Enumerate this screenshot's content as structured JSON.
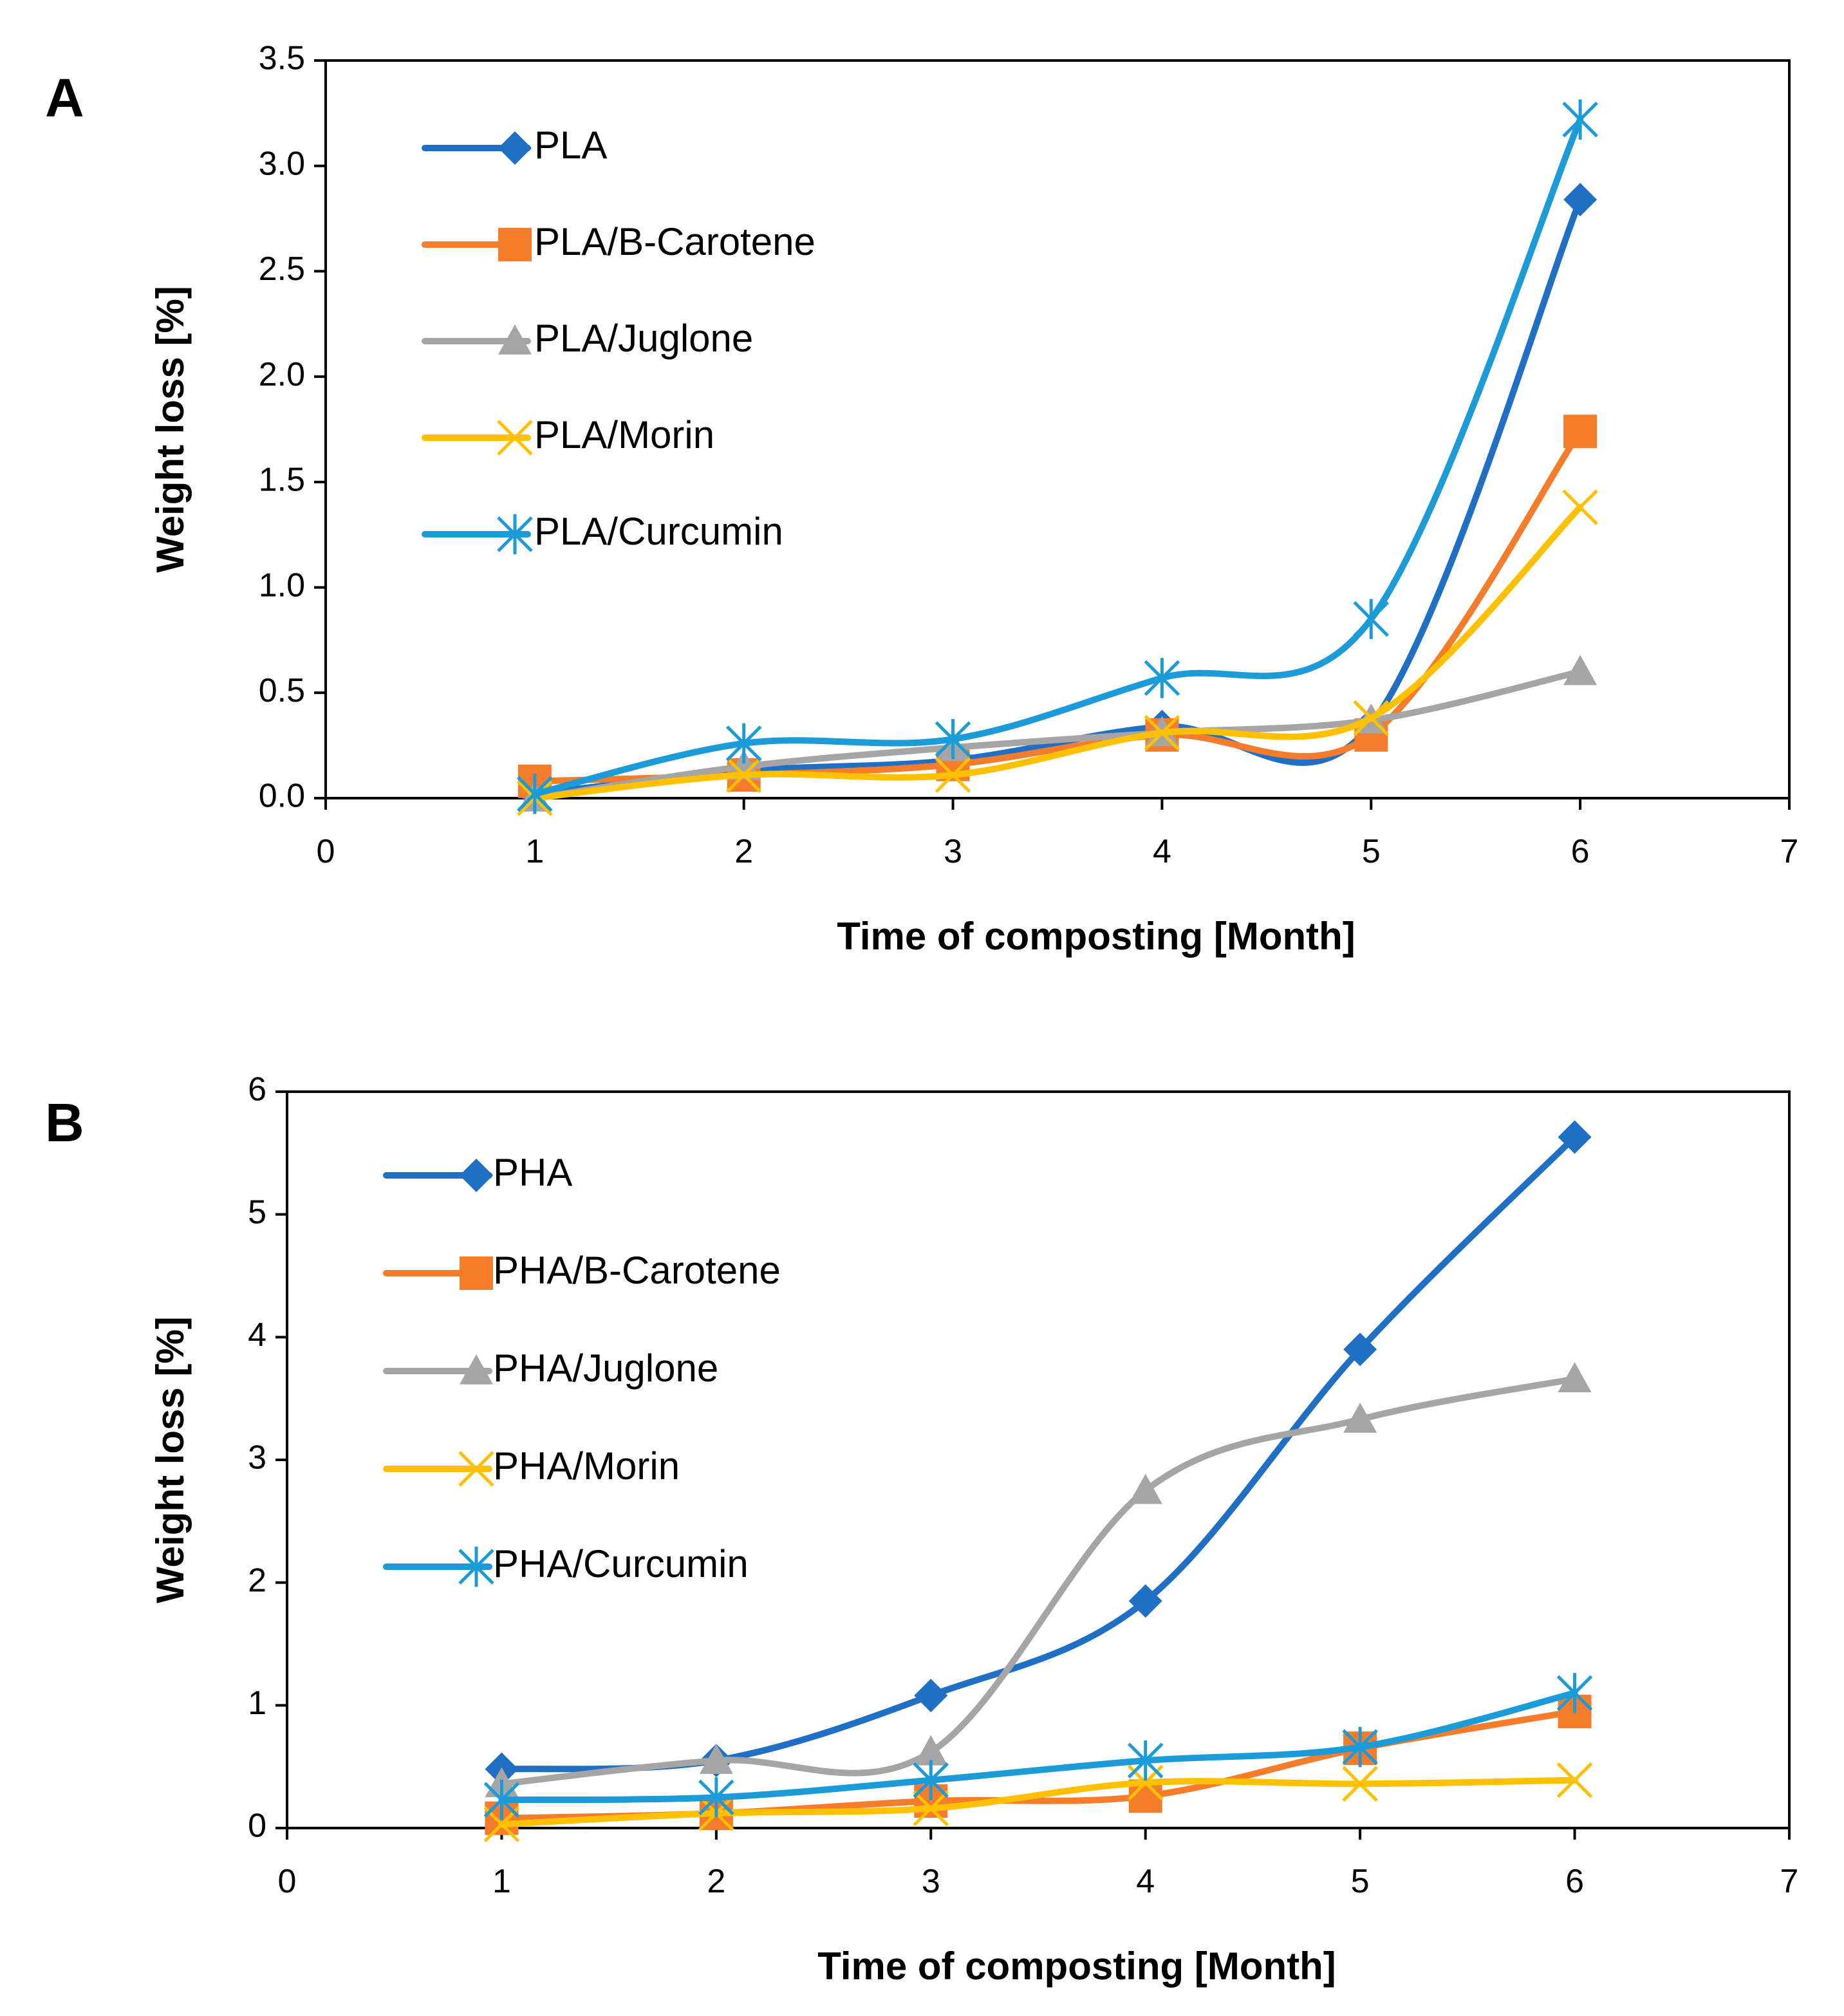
{
  "chart_data": [
    {
      "type": "line",
      "panel_label": "A",
      "xlabel": "Time of composting [Month]",
      "ylabel": "Weight loss [%]",
      "xlim": [
        0,
        7
      ],
      "ylim": [
        0,
        3.5
      ],
      "x_ticks": [
        0,
        1,
        2,
        3,
        4,
        5,
        6,
        7
      ],
      "x_tick_labels": [
        "0",
        "1",
        "2",
        "3",
        "4",
        "5",
        "6",
        "7"
      ],
      "y_ticks": [
        0,
        0.5,
        1.0,
        1.5,
        2.0,
        2.5,
        3.0,
        3.5
      ],
      "y_tick_labels": [
        "0.0",
        "0.5",
        "1.0",
        "1.5",
        "2.0",
        "2.5",
        "3.0",
        "3.5"
      ],
      "grid": false,
      "legend_position": "top-left",
      "x": [
        1,
        2,
        3,
        4,
        5,
        6
      ],
      "series": [
        {
          "name": "PLA",
          "color": "#1F6FC5",
          "marker": "diamond",
          "values": [
            0.02,
            0.13,
            0.18,
            0.34,
            0.35,
            2.84
          ]
        },
        {
          "name": "PLA/B-Carotene",
          "color": "#F47C2A",
          "marker": "square",
          "values": [
            0.08,
            0.11,
            0.16,
            0.3,
            0.3,
            1.74
          ]
        },
        {
          "name": "PLA/Juglone",
          "color": "#A5A5A5",
          "marker": "triangle",
          "values": [
            0.0,
            0.15,
            0.24,
            0.31,
            0.37,
            0.6
          ]
        },
        {
          "name": "PLA/Morin",
          "color": "#FFC000",
          "marker": "x",
          "values": [
            0.0,
            0.11,
            0.11,
            0.31,
            0.38,
            1.38
          ]
        },
        {
          "name": "PLA/Curcumin",
          "color": "#1B9BD7",
          "marker": "asterisk",
          "values": [
            0.02,
            0.26,
            0.28,
            0.57,
            0.85,
            3.22
          ]
        }
      ]
    },
    {
      "type": "line",
      "panel_label": "B",
      "xlabel": "Time of composting [Month]",
      "ylabel": "Weight loss [%]",
      "xlim": [
        0,
        7
      ],
      "ylim": [
        0,
        6
      ],
      "x_ticks": [
        0,
        1,
        2,
        3,
        4,
        5,
        6,
        7
      ],
      "x_tick_labels": [
        "0",
        "1",
        "2",
        "3",
        "4",
        "5",
        "6",
        "7"
      ],
      "y_ticks": [
        0,
        1,
        2,
        3,
        4,
        5,
        6
      ],
      "y_tick_labels": [
        "0",
        "1",
        "2",
        "3",
        "4",
        "5",
        "6"
      ],
      "grid": false,
      "legend_position": "top-left",
      "x": [
        1,
        2,
        3,
        4,
        5,
        6
      ],
      "series": [
        {
          "name": "PHA",
          "color": "#1F6FC5",
          "marker": "diamond",
          "values": [
            0.48,
            0.55,
            1.08,
            1.85,
            3.9,
            5.63
          ]
        },
        {
          "name": "PHA/B-Carotene",
          "color": "#F47C2A",
          "marker": "square",
          "values": [
            0.08,
            0.12,
            0.22,
            0.26,
            0.65,
            0.95
          ]
        },
        {
          "name": "PHA/Juglone",
          "color": "#A5A5A5",
          "marker": "triangle",
          "values": [
            0.36,
            0.55,
            0.62,
            2.75,
            3.33,
            3.66
          ]
        },
        {
          "name": "PHA/Morin",
          "color": "#FFC000",
          "marker": "x",
          "values": [
            0.03,
            0.12,
            0.16,
            0.37,
            0.36,
            0.39
          ]
        },
        {
          "name": "PHA/Curcumin",
          "color": "#1B9BD7",
          "marker": "asterisk",
          "values": [
            0.23,
            0.25,
            0.39,
            0.55,
            0.66,
            1.1
          ]
        }
      ]
    }
  ]
}
